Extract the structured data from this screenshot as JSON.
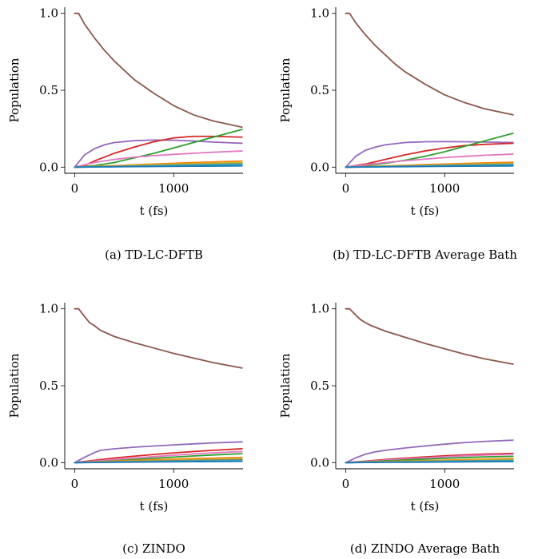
{
  "chart_data": [
    {
      "type": "line",
      "caption": "(a) TD-LC-DFTB",
      "xlabel": "t (fs)",
      "ylabel": "Population",
      "xlim": [
        -100,
        1700
      ],
      "ylim": [
        -0.04,
        1.04
      ],
      "xticks": [
        "0",
        "1000"
      ],
      "yticks": [
        "0.0",
        "0.5",
        "1.0"
      ],
      "series": [
        {
          "color": "#8c564b",
          "x": [
            0,
            40,
            100,
            200,
            300,
            400,
            500,
            600,
            800,
            1000,
            1200,
            1400,
            1690
          ],
          "y": [
            1.0,
            1.0,
            0.93,
            0.84,
            0.76,
            0.69,
            0.63,
            0.57,
            0.48,
            0.4,
            0.34,
            0.3,
            0.26
          ]
        },
        {
          "color": "#9467bd",
          "x": [
            0,
            100,
            200,
            300,
            400,
            600,
            800,
            1000,
            1200,
            1400,
            1690
          ],
          "y": [
            0.0,
            0.08,
            0.12,
            0.145,
            0.16,
            0.172,
            0.176,
            0.175,
            0.17,
            0.163,
            0.155
          ]
        },
        {
          "color": "#d62728",
          "x": [
            0,
            100,
            200,
            400,
            600,
            800,
            1000,
            1200,
            1400,
            1690
          ],
          "y": [
            0.0,
            0.01,
            0.04,
            0.09,
            0.13,
            0.165,
            0.19,
            0.2,
            0.2,
            0.195
          ]
        },
        {
          "color": "#2ca02c",
          "x": [
            0,
            200,
            400,
            600,
            800,
            1000,
            1200,
            1400,
            1690
          ],
          "y": [
            0.0,
            0.01,
            0.03,
            0.06,
            0.09,
            0.125,
            0.16,
            0.195,
            0.245
          ]
        },
        {
          "color": "#e377c2",
          "x": [
            0,
            200,
            400,
            600,
            800,
            1000,
            1200,
            1400,
            1690
          ],
          "y": [
            0.0,
            0.03,
            0.05,
            0.065,
            0.075,
            0.083,
            0.09,
            0.097,
            0.105
          ]
        },
        {
          "color": "#ff7f0e",
          "x": [
            0,
            400,
            800,
            1200,
            1690
          ],
          "y": [
            0.0,
            0.01,
            0.02,
            0.03,
            0.04
          ]
        },
        {
          "color": "#bcbd22",
          "x": [
            0,
            400,
            800,
            1200,
            1690
          ],
          "y": [
            0.0,
            0.007,
            0.015,
            0.022,
            0.03
          ]
        },
        {
          "color": "#7f7f7f",
          "x": [
            0,
            400,
            800,
            1200,
            1690
          ],
          "y": [
            0.0,
            0.005,
            0.01,
            0.016,
            0.022
          ]
        },
        {
          "color": "#17becf",
          "x": [
            0,
            400,
            800,
            1200,
            1690
          ],
          "y": [
            0.0,
            0.003,
            0.007,
            0.011,
            0.015
          ]
        },
        {
          "color": "#1f77b4",
          "x": [
            0,
            400,
            800,
            1200,
            1690
          ],
          "y": [
            0.0,
            0.002,
            0.004,
            0.006,
            0.008
          ]
        }
      ]
    },
    {
      "type": "line",
      "caption": "(b) TD-LC-DFTB Average Bath",
      "xlabel": "t (fs)",
      "ylabel": "Population",
      "xlim": [
        -100,
        1700
      ],
      "ylim": [
        -0.04,
        1.04
      ],
      "xticks": [
        "0",
        "1000"
      ],
      "yticks": [
        "0.0",
        "0.5",
        "1.0"
      ],
      "series": [
        {
          "color": "#8c564b",
          "x": [
            0,
            40,
            100,
            200,
            300,
            400,
            500,
            600,
            800,
            1000,
            1200,
            1400,
            1690
          ],
          "y": [
            1.0,
            1.0,
            0.94,
            0.86,
            0.79,
            0.73,
            0.67,
            0.62,
            0.54,
            0.47,
            0.42,
            0.38,
            0.34
          ]
        },
        {
          "color": "#9467bd",
          "x": [
            0,
            100,
            200,
            300,
            400,
            600,
            800,
            1000,
            1200,
            1400,
            1690
          ],
          "y": [
            0.0,
            0.07,
            0.11,
            0.13,
            0.145,
            0.16,
            0.165,
            0.166,
            0.165,
            0.163,
            0.16
          ]
        },
        {
          "color": "#d62728",
          "x": [
            0,
            200,
            400,
            600,
            800,
            1000,
            1200,
            1400,
            1690
          ],
          "y": [
            0.0,
            0.02,
            0.05,
            0.08,
            0.105,
            0.125,
            0.14,
            0.148,
            0.155
          ]
        },
        {
          "color": "#2ca02c",
          "x": [
            0,
            200,
            400,
            600,
            800,
            1000,
            1200,
            1400,
            1690
          ],
          "y": [
            0.0,
            0.01,
            0.025,
            0.045,
            0.07,
            0.1,
            0.135,
            0.17,
            0.22
          ]
        },
        {
          "color": "#e377c2",
          "x": [
            0,
            200,
            400,
            600,
            800,
            1000,
            1200,
            1400,
            1690
          ],
          "y": [
            0.0,
            0.015,
            0.03,
            0.042,
            0.052,
            0.062,
            0.07,
            0.077,
            0.085
          ]
        },
        {
          "color": "#ff7f0e",
          "x": [
            0,
            400,
            800,
            1200,
            1690
          ],
          "y": [
            0.0,
            0.008,
            0.016,
            0.024,
            0.032
          ]
        },
        {
          "color": "#bcbd22",
          "x": [
            0,
            400,
            800,
            1200,
            1690
          ],
          "y": [
            0.0,
            0.006,
            0.012,
            0.018,
            0.025
          ]
        },
        {
          "color": "#7f7f7f",
          "x": [
            0,
            400,
            800,
            1200,
            1690
          ],
          "y": [
            0.0,
            0.004,
            0.009,
            0.014,
            0.019
          ]
        },
        {
          "color": "#17becf",
          "x": [
            0,
            400,
            800,
            1200,
            1690
          ],
          "y": [
            0.0,
            0.003,
            0.006,
            0.009,
            0.013
          ]
        },
        {
          "color": "#1f77b4",
          "x": [
            0,
            400,
            800,
            1200,
            1690
          ],
          "y": [
            0.0,
            0.002,
            0.004,
            0.006,
            0.008
          ]
        }
      ]
    },
    {
      "type": "line",
      "caption": "(c) ZINDO",
      "xlabel": "t (fs)",
      "ylabel": "Population",
      "xlim": [
        -100,
        1700
      ],
      "ylim": [
        -0.04,
        1.04
      ],
      "xticks": [
        "0",
        "1000"
      ],
      "yticks": [
        "0.0",
        "0.5",
        "1.0"
      ],
      "series": [
        {
          "color": "#8c564b",
          "x": [
            0,
            40,
            100,
            150,
            200,
            260,
            400,
            600,
            800,
            1000,
            1200,
            1400,
            1690
          ],
          "y": [
            1.0,
            1.0,
            0.95,
            0.91,
            0.89,
            0.86,
            0.82,
            0.78,
            0.745,
            0.71,
            0.68,
            0.65,
            0.615
          ]
        },
        {
          "color": "#9467bd",
          "x": [
            0,
            100,
            200,
            260,
            400,
            600,
            800,
            1000,
            1200,
            1400,
            1690
          ],
          "y": [
            0.0,
            0.035,
            0.065,
            0.08,
            0.09,
            0.1,
            0.108,
            0.115,
            0.122,
            0.128,
            0.135
          ]
        },
        {
          "color": "#d62728",
          "x": [
            0,
            200,
            400,
            600,
            800,
            1000,
            1200,
            1400,
            1690
          ],
          "y": [
            0.0,
            0.015,
            0.03,
            0.042,
            0.053,
            0.063,
            0.072,
            0.08,
            0.09
          ]
        },
        {
          "color": "#e377c2",
          "x": [
            0,
            200,
            400,
            600,
            800,
            1000,
            1200,
            1400,
            1690
          ],
          "y": [
            0.0,
            0.01,
            0.02,
            0.03,
            0.039,
            0.048,
            0.056,
            0.064,
            0.072
          ]
        },
        {
          "color": "#2ca02c",
          "x": [
            0,
            200,
            400,
            600,
            800,
            1000,
            1200,
            1400,
            1690
          ],
          "y": [
            0.0,
            0.005,
            0.012,
            0.02,
            0.028,
            0.036,
            0.043,
            0.05,
            0.058
          ]
        },
        {
          "color": "#ff7f0e",
          "x": [
            0,
            400,
            800,
            1200,
            1690
          ],
          "y": [
            0.0,
            0.01,
            0.018,
            0.026,
            0.034
          ]
        },
        {
          "color": "#bcbd22",
          "x": [
            0,
            400,
            800,
            1200,
            1690
          ],
          "y": [
            0.0,
            0.007,
            0.013,
            0.019,
            0.025
          ]
        },
        {
          "color": "#7f7f7f",
          "x": [
            0,
            400,
            800,
            1200,
            1690
          ],
          "y": [
            0.0,
            0.005,
            0.01,
            0.014,
            0.019
          ]
        },
        {
          "color": "#17becf",
          "x": [
            0,
            400,
            800,
            1200,
            1690
          ],
          "y": [
            0.0,
            0.003,
            0.006,
            0.009,
            0.012
          ]
        },
        {
          "color": "#1f77b4",
          "x": [
            0,
            400,
            800,
            1200,
            1690
          ],
          "y": [
            0.0,
            0.002,
            0.004,
            0.006,
            0.008
          ]
        }
      ]
    },
    {
      "type": "line",
      "caption": "(d) ZINDO Average Bath",
      "xlabel": "t (fs)",
      "ylabel": "Population",
      "xlim": [
        -100,
        1700
      ],
      "ylim": [
        -0.04,
        1.04
      ],
      "xticks": [
        "0",
        "1000"
      ],
      "yticks": [
        "0.0",
        "0.5",
        "1.0"
      ],
      "series": [
        {
          "color": "#8c564b",
          "x": [
            0,
            40,
            100,
            150,
            200,
            260,
            400,
            600,
            800,
            1000,
            1200,
            1400,
            1690
          ],
          "y": [
            1.0,
            1.0,
            0.96,
            0.93,
            0.91,
            0.89,
            0.855,
            0.815,
            0.775,
            0.74,
            0.705,
            0.675,
            0.64
          ]
        },
        {
          "color": "#9467bd",
          "x": [
            0,
            100,
            200,
            300,
            400,
            600,
            800,
            1000,
            1200,
            1400,
            1690
          ],
          "y": [
            0.0,
            0.03,
            0.055,
            0.07,
            0.08,
            0.095,
            0.108,
            0.12,
            0.13,
            0.138,
            0.146
          ]
        },
        {
          "color": "#d62728",
          "x": [
            0,
            200,
            400,
            600,
            800,
            1000,
            1200,
            1400,
            1690
          ],
          "y": [
            0.0,
            0.01,
            0.02,
            0.029,
            0.037,
            0.044,
            0.05,
            0.055,
            0.06
          ]
        },
        {
          "color": "#e377c2",
          "x": [
            0,
            200,
            400,
            600,
            800,
            1000,
            1200,
            1400,
            1690
          ],
          "y": [
            0.0,
            0.008,
            0.016,
            0.024,
            0.031,
            0.038,
            0.044,
            0.049,
            0.054
          ]
        },
        {
          "color": "#2ca02c",
          "x": [
            0,
            200,
            400,
            600,
            800,
            1000,
            1200,
            1400,
            1690
          ],
          "y": [
            0.0,
            0.005,
            0.011,
            0.017,
            0.023,
            0.028,
            0.033,
            0.037,
            0.041
          ]
        },
        {
          "color": "#ff7f0e",
          "x": [
            0,
            400,
            800,
            1200,
            1690
          ],
          "y": [
            0.0,
            0.007,
            0.013,
            0.019,
            0.026
          ]
        },
        {
          "color": "#bcbd22",
          "x": [
            0,
            400,
            800,
            1200,
            1690
          ],
          "y": [
            0.0,
            0.005,
            0.01,
            0.015,
            0.02
          ]
        },
        {
          "color": "#7f7f7f",
          "x": [
            0,
            400,
            800,
            1200,
            1690
          ],
          "y": [
            0.0,
            0.004,
            0.008,
            0.011,
            0.015
          ]
        },
        {
          "color": "#17becf",
          "x": [
            0,
            400,
            800,
            1200,
            1690
          ],
          "y": [
            0.0,
            0.003,
            0.005,
            0.008,
            0.011
          ]
        },
        {
          "color": "#1f77b4",
          "x": [
            0,
            400,
            800,
            1200,
            1690
          ],
          "y": [
            0.0,
            0.002,
            0.003,
            0.005,
            0.007
          ]
        }
      ]
    }
  ]
}
